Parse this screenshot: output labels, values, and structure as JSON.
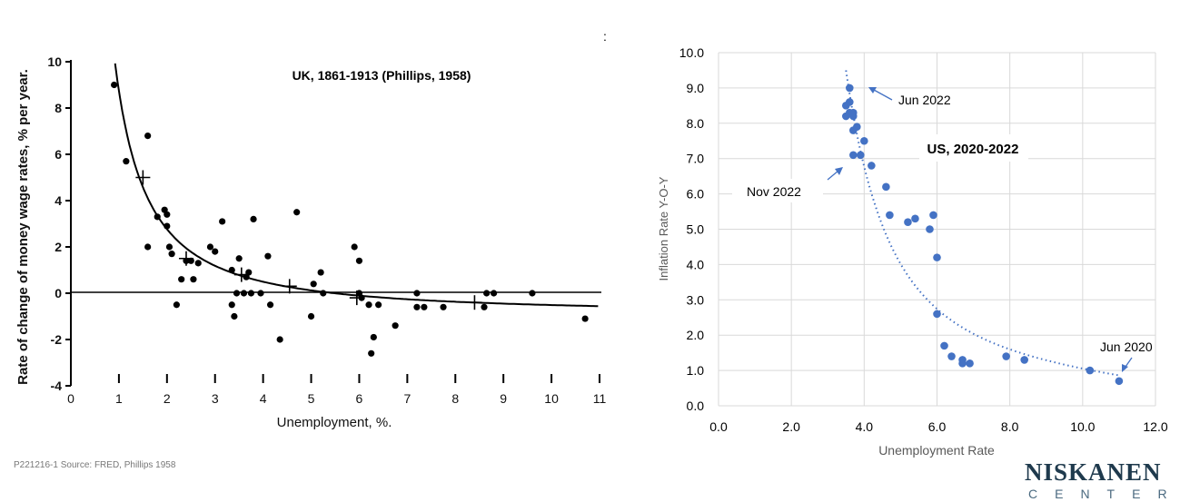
{
  "footnote": "P221216-1 Source: FRED, Phillips 1958",
  "logo": {
    "top": "NISKANEN",
    "bottom": "CENTER"
  },
  "chart_data": [
    {
      "type": "scatter",
      "title": "UK, 1861-1913 (Phillips, 1958)",
      "xlabel": "Unemployment,  %.",
      "ylabel": "Rate of change of money wage rates, % per year.",
      "xlim": [
        0,
        11
      ],
      "ylim": [
        -4,
        10
      ],
      "xticks": [
        "0",
        "1",
        "2",
        "3",
        "4",
        "5",
        "6",
        "7",
        "8",
        "9",
        "10",
        "11"
      ],
      "yticks": [
        "10",
        "8",
        "6",
        "4",
        "2",
        "0",
        "-2",
        "-4"
      ],
      "grid": false,
      "style": "scanned ink line drawing",
      "points": [
        {
          "x": 0.9,
          "y": 9.0
        },
        {
          "x": 1.15,
          "y": 5.7
        },
        {
          "x": 1.6,
          "y": 6.8
        },
        {
          "x": 1.6,
          "y": 2.0
        },
        {
          "x": 1.8,
          "y": 3.3
        },
        {
          "x": 1.95,
          "y": 3.6
        },
        {
          "x": 2.0,
          "y": 3.4
        },
        {
          "x": 2.0,
          "y": 2.9
        },
        {
          "x": 2.05,
          "y": 2.0
        },
        {
          "x": 2.1,
          "y": 1.7
        },
        {
          "x": 2.2,
          "y": -0.5
        },
        {
          "x": 2.3,
          "y": 0.6
        },
        {
          "x": 2.4,
          "y": 1.4
        },
        {
          "x": 2.5,
          "y": 1.4
        },
        {
          "x": 2.55,
          "y": 0.6
        },
        {
          "x": 2.65,
          "y": 1.3
        },
        {
          "x": 2.9,
          "y": 2.0
        },
        {
          "x": 3.0,
          "y": 1.8
        },
        {
          "x": 3.15,
          "y": 3.1
        },
        {
          "x": 3.35,
          "y": 1.0
        },
        {
          "x": 3.35,
          "y": -0.5
        },
        {
          "x": 3.4,
          "y": -1.0
        },
        {
          "x": 3.45,
          "y": 0.0
        },
        {
          "x": 3.5,
          "y": 1.5
        },
        {
          "x": 3.6,
          "y": 0.0
        },
        {
          "x": 3.65,
          "y": 0.7
        },
        {
          "x": 3.7,
          "y": 0.9
        },
        {
          "x": 3.75,
          "y": 0.0
        },
        {
          "x": 3.8,
          "y": 3.2
        },
        {
          "x": 3.95,
          "y": 0.0
        },
        {
          "x": 4.1,
          "y": 1.6
        },
        {
          "x": 4.15,
          "y": -0.5
        },
        {
          "x": 4.35,
          "y": -2.0
        },
        {
          "x": 4.7,
          "y": 3.5
        },
        {
          "x": 5.0,
          "y": -1.0
        },
        {
          "x": 5.05,
          "y": 0.4
        },
        {
          "x": 5.2,
          "y": 0.9
        },
        {
          "x": 5.25,
          "y": 0.0
        },
        {
          "x": 5.9,
          "y": 2.0
        },
        {
          "x": 6.0,
          "y": 1.4
        },
        {
          "x": 6.0,
          "y": 0.0
        },
        {
          "x": 6.05,
          "y": -0.2
        },
        {
          "x": 6.2,
          "y": -0.5
        },
        {
          "x": 6.25,
          "y": -2.6
        },
        {
          "x": 6.3,
          "y": -1.9
        },
        {
          "x": 6.4,
          "y": -0.5
        },
        {
          "x": 6.75,
          "y": -1.4
        },
        {
          "x": 7.2,
          "y": 0.0
        },
        {
          "x": 7.2,
          "y": -0.6
        },
        {
          "x": 7.35,
          "y": -0.6
        },
        {
          "x": 7.75,
          "y": -0.6
        },
        {
          "x": 8.6,
          "y": -0.6
        },
        {
          "x": 8.65,
          "y": 0.0
        },
        {
          "x": 8.8,
          "y": 0.0
        },
        {
          "x": 9.6,
          "y": 0.0
        },
        {
          "x": 10.7,
          "y": -1.1
        }
      ],
      "average_markers": [
        {
          "x": 1.5,
          "y": 5.0
        },
        {
          "x": 2.4,
          "y": 1.5
        },
        {
          "x": 3.55,
          "y": 0.8
        },
        {
          "x": 4.55,
          "y": 0.3
        },
        {
          "x": 5.95,
          "y": -0.2
        },
        {
          "x": 8.4,
          "y": -0.4
        }
      ],
      "fitted_curve": "y = -0.900 + 9.638 * x^-1.394"
    },
    {
      "type": "scatter",
      "title": "US, 2020-2022",
      "xlabel": "Unemployment Rate",
      "ylabel": "Inflation Rate Y-O-Y",
      "xlim": [
        0,
        12
      ],
      "ylim": [
        0,
        10
      ],
      "xticks": [
        "0.0",
        "2.0",
        "4.0",
        "6.0",
        "8.0",
        "10.0",
        "12.0"
      ],
      "yticks": [
        "0.0",
        "1.0",
        "2.0",
        "3.0",
        "4.0",
        "5.0",
        "6.0",
        "7.0",
        "8.0",
        "9.0",
        "10.0"
      ],
      "grid": true,
      "series": [
        {
          "color": "#4472c4",
          "points": [
            {
              "x": 3.5,
              "y": 8.5
            },
            {
              "x": 3.6,
              "y": 8.6
            },
            {
              "x": 3.6,
              "y": 9.0
            },
            {
              "x": 3.6,
              "y": 8.3
            },
            {
              "x": 3.5,
              "y": 8.2
            },
            {
              "x": 3.7,
              "y": 8.2
            },
            {
              "x": 3.7,
              "y": 8.3
            },
            {
              "x": 3.7,
              "y": 7.8
            },
            {
              "x": 3.8,
              "y": 7.9
            },
            {
              "x": 3.9,
              "y": 7.1
            },
            {
              "x": 4.0,
              "y": 7.5
            },
            {
              "x": 3.7,
              "y": 7.1
            },
            {
              "x": 4.2,
              "y": 6.8
            },
            {
              "x": 4.6,
              "y": 6.2
            },
            {
              "x": 4.7,
              "y": 5.4
            },
            {
              "x": 5.2,
              "y": 5.2
            },
            {
              "x": 5.4,
              "y": 5.3
            },
            {
              "x": 5.8,
              "y": 5.0
            },
            {
              "x": 5.9,
              "y": 5.4
            },
            {
              "x": 6.0,
              "y": 4.2
            },
            {
              "x": 6.0,
              "y": 2.6
            },
            {
              "x": 6.2,
              "y": 1.7
            },
            {
              "x": 6.4,
              "y": 1.4
            },
            {
              "x": 6.7,
              "y": 1.3
            },
            {
              "x": 6.7,
              "y": 1.2
            },
            {
              "x": 6.9,
              "y": 1.2
            },
            {
              "x": 7.9,
              "y": 1.4
            },
            {
              "x": 8.4,
              "y": 1.3
            },
            {
              "x": 10.2,
              "y": 1.0
            },
            {
              "x": 11.0,
              "y": 0.7
            }
          ]
        }
      ],
      "trendline": "y = 1.4 + 8.1 * (3.5/x)^3 - 0.8 * (x-3.5)/7.5 (dotted)",
      "annotations": [
        {
          "text": "Jun 2022",
          "x": 3.6,
          "y": 9.0
        },
        {
          "text": "Nov 2022",
          "x": 3.6,
          "y": 6.6
        },
        {
          "text": "Jun 2020",
          "x": 11.0,
          "y": 0.7
        }
      ]
    }
  ]
}
